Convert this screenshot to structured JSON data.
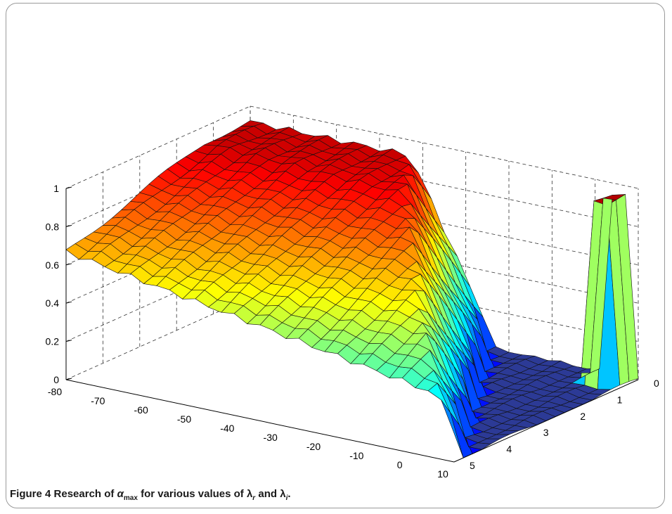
{
  "figure": {
    "label": "Figure 4",
    "caption_text": "Research of αmax for various values of λr and λi."
  },
  "chart_data": {
    "type": "surface3d",
    "title": "",
    "xlabel": "",
    "ylabel": "",
    "zlabel": "",
    "x_ticks": [
      "-80",
      "-70",
      "-60",
      "-50",
      "-40",
      "-30",
      "-20",
      "-10",
      "0",
      "10"
    ],
    "y_ticks": [
      "0",
      "1",
      "2",
      "3",
      "4",
      "5"
    ],
    "z_ticks": [
      "0",
      "0.2",
      "0.4",
      "0.6",
      "0.8",
      "1"
    ],
    "xlim": [
      -80,
      10
    ],
    "ylim": [
      0,
      5
    ],
    "zlim": [
      0,
      1
    ],
    "grid": true,
    "colormap": "jet",
    "surface_description": "alpha_max as a function of lambda_r (x) and lambda_i (y); near 0.6-0.9 for negative lambda_r, dropping to 0 for larger lambda_i as lambda_r approaches the right; a sharp ridge near lambda_r about 5, lambda_i 0 reaching about 1"
  }
}
